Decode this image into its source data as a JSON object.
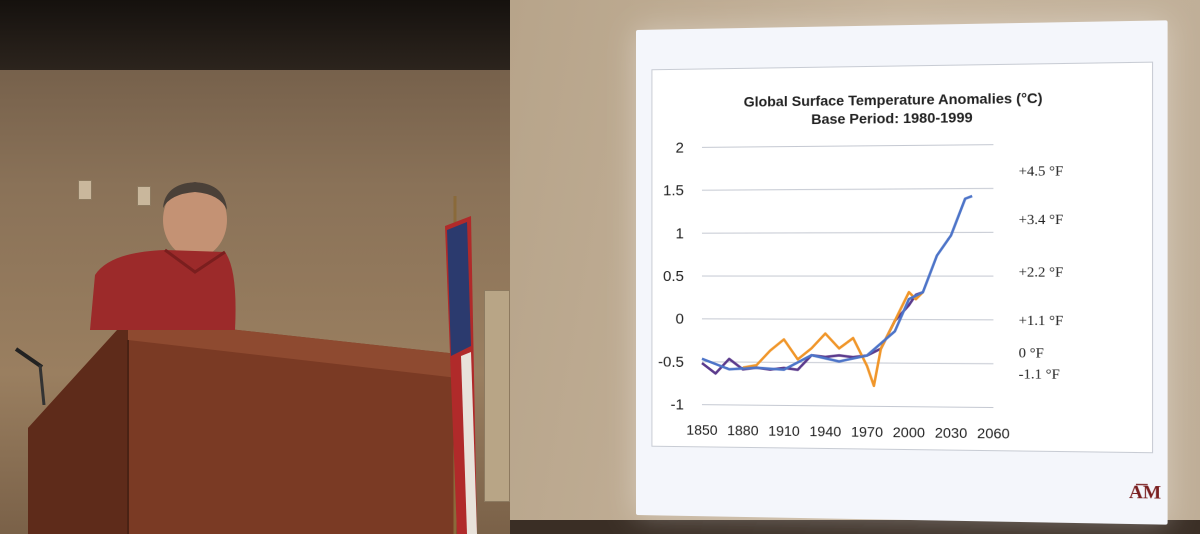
{
  "chart_data": {
    "type": "line",
    "title": "Global Surface Temperature Anomalies (°C)",
    "subtitle": "Base Period: 1980-1999",
    "xlabel": "",
    "ylabel": "",
    "xlim": [
      1850,
      2060
    ],
    "ylim": [
      -1,
      2
    ],
    "x_ticks": [
      "1850",
      "1880",
      "1910",
      "1940",
      "1970",
      "2000",
      "2030",
      "2060"
    ],
    "y_ticks": [
      "-1",
      "-0.5",
      "0",
      "0.5",
      "1",
      "1.5",
      "2"
    ],
    "y2_ticks": [
      "-1.1 °F",
      "0 °F",
      "+1.1 °F",
      "+2.2 °F",
      "+3.4 °F",
      "+4.5 °F"
    ],
    "grid": true,
    "series": [
      {
        "color": "#5b3a8c",
        "x": [
          1850,
          1860,
          1870,
          1880,
          1890,
          1900,
          1910,
          1920,
          1930,
          1940,
          1950,
          1960,
          1970,
          1980,
          1990,
          2000,
          2005,
          2010
        ],
        "y": [
          -0.55,
          -0.6,
          -0.5,
          -0.55,
          -0.6,
          -0.55,
          -0.6,
          -0.55,
          -0.45,
          -0.4,
          -0.45,
          -0.4,
          -0.45,
          -0.3,
          -0.05,
          0.2,
          0.25,
          0.35
        ]
      },
      {
        "color": "#f0962a",
        "x": [
          1880,
          1890,
          1900,
          1910,
          1920,
          1930,
          1940,
          1950,
          1960,
          1970,
          1975,
          1980,
          1990,
          2000,
          2005,
          2010
        ],
        "y": [
          -0.6,
          -0.5,
          -0.4,
          -0.2,
          -0.5,
          -0.3,
          -0.2,
          -0.3,
          -0.25,
          -0.5,
          -0.8,
          -0.3,
          -0.05,
          0.35,
          0.2,
          0.35
        ]
      },
      {
        "color": "#4d74c8",
        "x": [
          1850,
          1870,
          1890,
          1910,
          1930,
          1950,
          1970,
          1990,
          2000,
          2010,
          2020,
          2030,
          2040,
          2045
        ],
        "y": [
          -0.5,
          -0.55,
          -0.6,
          -0.55,
          -0.45,
          -0.45,
          -0.45,
          -0.1,
          0.2,
          0.35,
          0.7,
          1.0,
          1.35,
          1.45
        ]
      }
    ]
  },
  "podium": {
    "label": ""
  }
}
